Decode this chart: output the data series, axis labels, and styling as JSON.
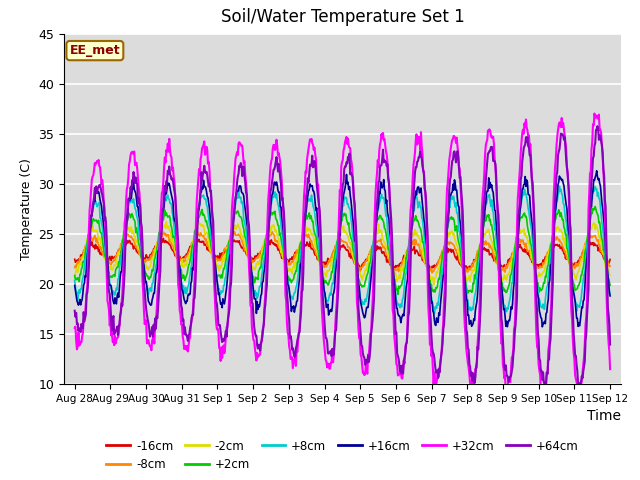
{
  "title": "Soil/Water Temperature Set 1",
  "xlabel": "Time",
  "ylabel": "Temperature (C)",
  "ylim": [
    10,
    45
  ],
  "annotation": "EE_met",
  "bg_color": "#dcdcdc",
  "grid_color": "white",
  "series_order": [
    "-16cm",
    "-8cm",
    "-2cm",
    "+2cm",
    "+8cm",
    "+16cm",
    "+32cm",
    "+64cm"
  ],
  "series": {
    "-16cm": {
      "color": "#dd0000",
      "lw": 1.2
    },
    "-8cm": {
      "color": "#ff8800",
      "lw": 1.2
    },
    "-2cm": {
      "color": "#dddd00",
      "lw": 1.2
    },
    "+2cm": {
      "color": "#00cc00",
      "lw": 1.2
    },
    "+8cm": {
      "color": "#00cccc",
      "lw": 1.2
    },
    "+16cm": {
      "color": "#000099",
      "lw": 1.2
    },
    "+32cm": {
      "color": "#ff00ff",
      "lw": 1.5
    },
    "+64cm": {
      "color": "#8800bb",
      "lw": 1.5
    }
  },
  "xtick_labels": [
    "Aug 28",
    "Aug 29",
    "Aug 30",
    "Aug 31",
    "Sep 1",
    "Sep 2",
    "Sep 3",
    "Sep 4",
    "Sep 5",
    "Sep 6",
    "Sep 7",
    "Sep 8",
    "Sep 9",
    "Sep 10",
    "Sep 11",
    "Sep 12"
  ],
  "xtick_positions": [
    0,
    1,
    2,
    3,
    4,
    5,
    6,
    7,
    8,
    9,
    10,
    11,
    12,
    13,
    14,
    15
  ],
  "yticks": [
    10,
    15,
    20,
    25,
    30,
    35,
    40,
    45
  ],
  "legend_rows": [
    [
      "-16cm",
      "-8cm",
      "-2cm",
      "+2cm",
      "+8cm",
      "+16cm"
    ],
    [
      "+32cm",
      "+64cm"
    ]
  ]
}
